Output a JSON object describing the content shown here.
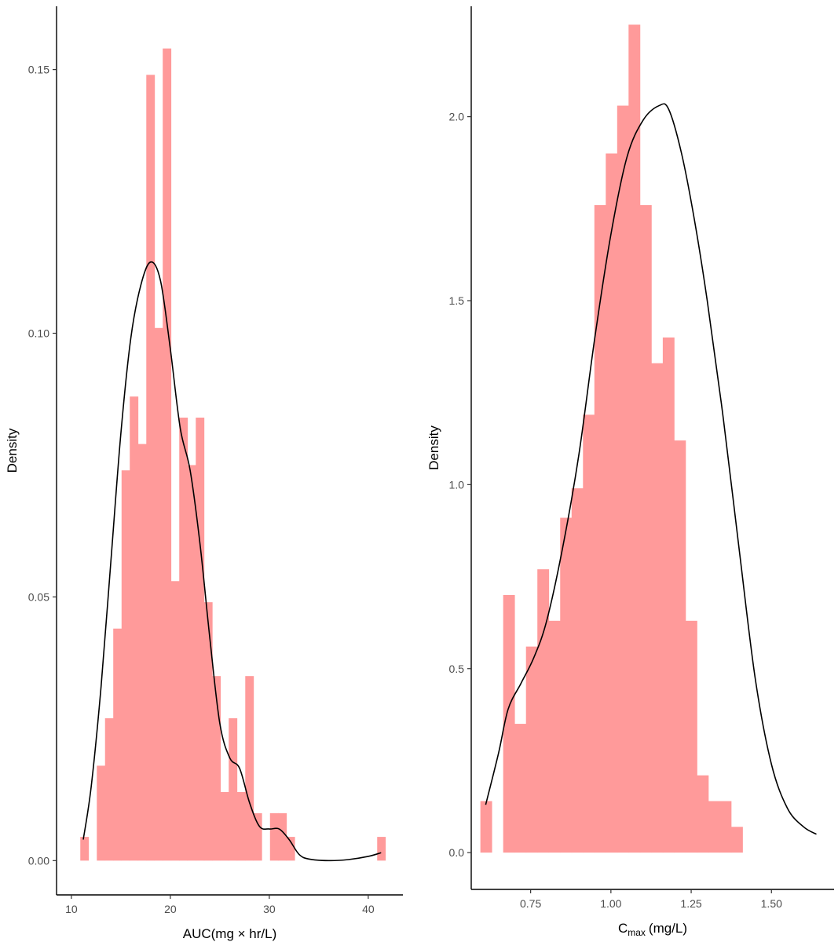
{
  "colors": {
    "bar_fill": "#ff9a9a",
    "curve": "#000000",
    "axis": "#000000",
    "tick_text": "#4d4d4d"
  },
  "chart_data": [
    {
      "type": "histogram",
      "xlabel": "AUC(mg × hr/L)",
      "ylabel": "Density",
      "xlim": [
        8.5,
        43.5
      ],
      "ylim": [
        -0.0065,
        0.162
      ],
      "x_ticks": [
        10,
        20,
        30,
        40
      ],
      "y_ticks": [
        0.0,
        0.05,
        0.1,
        0.15
      ],
      "y_tick_labels": [
        "0.00",
        "0.05",
        "0.10",
        "0.15"
      ],
      "grid": false,
      "bin_width": 0.833,
      "bins": [
        {
          "x0": 10.9,
          "value": 0.0045
        },
        {
          "x0": 11.73,
          "value": 0.0
        },
        {
          "x0": 12.57,
          "value": 0.018
        },
        {
          "x0": 13.4,
          "value": 0.027
        },
        {
          "x0": 14.23,
          "value": 0.044
        },
        {
          "x0": 15.07,
          "value": 0.074
        },
        {
          "x0": 15.9,
          "value": 0.088
        },
        {
          "x0": 16.73,
          "value": 0.079
        },
        {
          "x0": 17.57,
          "value": 0.149
        },
        {
          "x0": 18.4,
          "value": 0.101
        },
        {
          "x0": 19.23,
          "value": 0.154
        },
        {
          "x0": 20.07,
          "value": 0.053
        },
        {
          "x0": 20.9,
          "value": 0.084
        },
        {
          "x0": 21.73,
          "value": 0.075
        },
        {
          "x0": 22.57,
          "value": 0.084
        },
        {
          "x0": 23.4,
          "value": 0.049
        },
        {
          "x0": 24.23,
          "value": 0.035
        },
        {
          "x0": 25.07,
          "value": 0.013
        },
        {
          "x0": 25.9,
          "value": 0.027
        },
        {
          "x0": 26.73,
          "value": 0.013
        },
        {
          "x0": 27.57,
          "value": 0.035
        },
        {
          "x0": 28.4,
          "value": 0.009
        },
        {
          "x0": 29.23,
          "value": 0.0
        },
        {
          "x0": 30.07,
          "value": 0.009
        },
        {
          "x0": 30.9,
          "value": 0.009
        },
        {
          "x0": 31.73,
          "value": 0.0045
        },
        {
          "x0": 32.57,
          "value": 0.0
        },
        {
          "x0": 40.9,
          "value": 0.0045
        }
      ],
      "density_curve": [
        [
          11.2,
          0.004
        ],
        [
          12.0,
          0.014
        ],
        [
          13.0,
          0.033
        ],
        [
          14.0,
          0.057
        ],
        [
          15.0,
          0.081
        ],
        [
          16.0,
          0.099
        ],
        [
          17.0,
          0.109
        ],
        [
          18.0,
          0.1135
        ],
        [
          19.0,
          0.11
        ],
        [
          20.0,
          0.097
        ],
        [
          21.0,
          0.082
        ],
        [
          22.0,
          0.074
        ],
        [
          23.0,
          0.06
        ],
        [
          24.0,
          0.042
        ],
        [
          25.0,
          0.026
        ],
        [
          26.0,
          0.0195
        ],
        [
          27.0,
          0.0175
        ],
        [
          28.0,
          0.011
        ],
        [
          29.0,
          0.0065
        ],
        [
          30.0,
          0.006
        ],
        [
          31.0,
          0.006
        ],
        [
          32.0,
          0.004
        ],
        [
          33.0,
          0.0012
        ],
        [
          34.0,
          0.0003
        ],
        [
          36.0,
          0.0
        ],
        [
          38.0,
          0.0002
        ],
        [
          40.0,
          0.0008
        ],
        [
          41.3,
          0.0015
        ]
      ]
    },
    {
      "type": "histogram",
      "xlabel_main": "C",
      "xlabel_sub": "max",
      "xlabel_unit": "(mg/L)",
      "ylabel": "Density",
      "xlim": [
        0.565,
        1.695
      ],
      "ylim": [
        -0.1,
        2.3
      ],
      "x_ticks": [
        0.75,
        1.0,
        1.25,
        1.5
      ],
      "x_tick_labels": [
        "0.75",
        "1.00",
        "1.25",
        "1.50"
      ],
      "y_ticks": [
        0.0,
        0.5,
        1.0,
        1.5,
        2.0
      ],
      "y_tick_labels": [
        "0.0",
        "0.5",
        "1.0",
        "1.5",
        "2.0"
      ],
      "grid": false,
      "bin_width": 0.0355,
      "bins": [
        {
          "x0": 0.5935,
          "value": 0.14
        },
        {
          "x0": 0.629,
          "value": 0.0
        },
        {
          "x0": 0.6645,
          "value": 0.7
        },
        {
          "x0": 0.7,
          "value": 0.35
        },
        {
          "x0": 0.7355,
          "value": 0.56
        },
        {
          "x0": 0.771,
          "value": 0.77
        },
        {
          "x0": 0.8065,
          "value": 0.63
        },
        {
          "x0": 0.842,
          "value": 0.91
        },
        {
          "x0": 0.8775,
          "value": 0.99
        },
        {
          "x0": 0.913,
          "value": 1.19
        },
        {
          "x0": 0.9485,
          "value": 1.76
        },
        {
          "x0": 0.984,
          "value": 1.9
        },
        {
          "x0": 1.0195,
          "value": 2.03
        },
        {
          "x0": 1.055,
          "value": 2.25
        },
        {
          "x0": 1.0905,
          "value": 1.76
        },
        {
          "x0": 1.126,
          "value": 1.33
        },
        {
          "x0": 1.1615,
          "value": 1.4
        },
        {
          "x0": 1.197,
          "value": 1.12
        },
        {
          "x0": 1.2325,
          "value": 0.63
        },
        {
          "x0": 1.268,
          "value": 0.21
        },
        {
          "x0": 1.3035,
          "value": 0.14
        },
        {
          "x0": 1.339,
          "value": 0.14
        },
        {
          "x0": 1.3745,
          "value": 0.07
        }
      ],
      "density_curve": [
        [
          0.61,
          0.13
        ],
        [
          0.65,
          0.27
        ],
        [
          0.68,
          0.39
        ],
        [
          0.72,
          0.46
        ],
        [
          0.76,
          0.53
        ],
        [
          0.8,
          0.63
        ],
        [
          0.85,
          0.83
        ],
        [
          0.9,
          1.08
        ],
        [
          0.95,
          1.4
        ],
        [
          1.0,
          1.68
        ],
        [
          1.05,
          1.89
        ],
        [
          1.1,
          1.99
        ],
        [
          1.15,
          2.03
        ],
        [
          1.18,
          2.02
        ],
        [
          1.22,
          1.9
        ],
        [
          1.26,
          1.72
        ],
        [
          1.3,
          1.5
        ],
        [
          1.35,
          1.18
        ],
        [
          1.4,
          0.82
        ],
        [
          1.45,
          0.47
        ],
        [
          1.5,
          0.24
        ],
        [
          1.55,
          0.12
        ],
        [
          1.6,
          0.07
        ],
        [
          1.64,
          0.05
        ]
      ]
    }
  ]
}
